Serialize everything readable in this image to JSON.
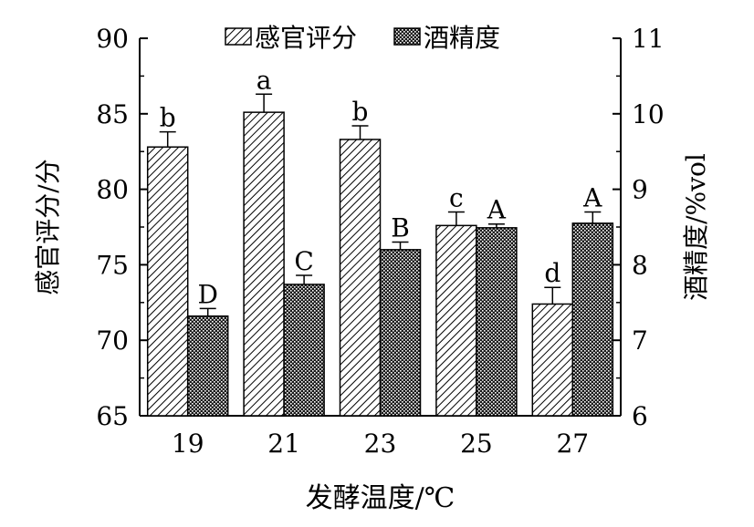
{
  "chart_data": {
    "type": "bar",
    "xlabel": "发酵温度/℃",
    "ylabel_left": "感官评分/分",
    "ylabel_right": "酒精度/%vol",
    "categories": [
      "19",
      "21",
      "23",
      "25",
      "27"
    ],
    "left_axis": {
      "range": [
        65,
        90
      ],
      "ticks": [
        "65",
        "70",
        "75",
        "80",
        "85",
        "90"
      ]
    },
    "right_axis": {
      "range": [
        6,
        11
      ],
      "ticks": [
        "6",
        "7",
        "8",
        "9",
        "10",
        "11"
      ]
    },
    "legend_position": "top-center",
    "grid": false,
    "series": [
      {
        "name": "感官评分",
        "axis": "left",
        "pattern": "diagonal-hatch",
        "values": [
          82.8,
          85.1,
          83.3,
          77.6,
          72.4
        ],
        "errors": [
          1.0,
          1.2,
          0.9,
          0.9,
          1.1
        ],
        "labels": [
          "b",
          "a",
          "b",
          "c",
          "d"
        ]
      },
      {
        "name": "酒精度",
        "axis": "right",
        "pattern": "dense-dots",
        "values": [
          7.32,
          7.74,
          8.2,
          8.49,
          8.55
        ],
        "errors": [
          0.1,
          0.12,
          0.1,
          0.05,
          0.15
        ],
        "labels": [
          "D",
          "C",
          "B",
          "A",
          "A"
        ]
      }
    ]
  }
}
